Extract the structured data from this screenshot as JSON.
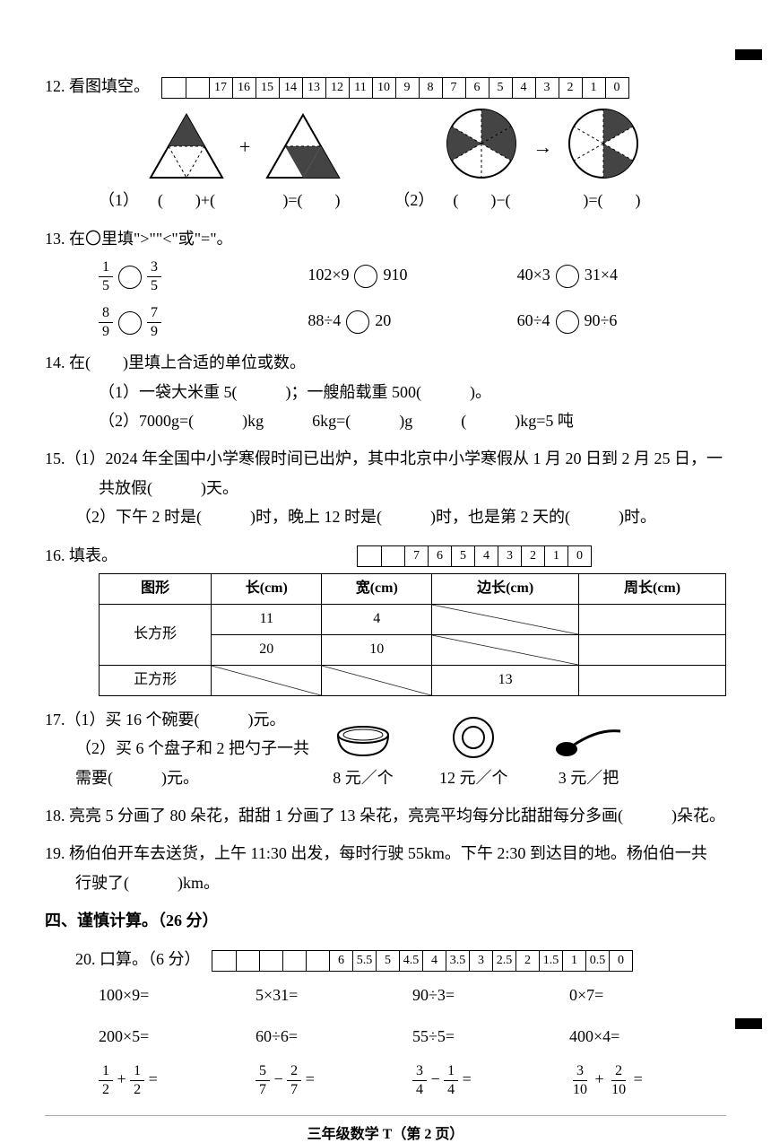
{
  "ruler_q12": [
    "",
    "",
    "17",
    "16",
    "15",
    "14",
    "13",
    "12",
    "11",
    "10",
    "9",
    "8",
    "7",
    "6",
    "5",
    "4",
    "3",
    "2",
    "1",
    "0"
  ],
  "q12": {
    "title": "12. 看图填空。",
    "sub1": "（1）",
    "sub2": "（2）",
    "eq1": "(　　)+(　　)=(　　)",
    "eq2": "(　　)−(　　)=(　　)"
  },
  "q13": {
    "title": "13. 在〇里填\">\"\"<\"或\"=\"。",
    "items": [
      {
        "left_n": "1",
        "left_d": "5",
        "right_n": "3",
        "right_d": "5",
        "type": "frac"
      },
      {
        "text_l": "102×9",
        "text_r": "910",
        "type": "expr"
      },
      {
        "text_l": "40×3",
        "text_r": "31×4",
        "type": "expr"
      },
      {
        "left_n": "8",
        "left_d": "9",
        "right_n": "7",
        "right_d": "9",
        "type": "frac"
      },
      {
        "text_l": "88÷4",
        "text_r": "20",
        "type": "expr"
      },
      {
        "text_l": "60÷4",
        "text_r": "90÷6",
        "type": "expr"
      }
    ]
  },
  "q14": {
    "title": "14. 在(　　)里填上合适的单位或数。",
    "line1": "（1）一袋大米重 5(　　　)；一艘船载重 500(　　　)。",
    "line2": "（2）7000g=(　　　)kg　　　6kg=(　　　)g　　　(　　　)kg=5 吨"
  },
  "q15": {
    "line1": "15.（1）2024 年全国中小学寒假时间已出炉，其中北京中小学寒假从 1 月 20 日到 2 月 25 日，一",
    "line1b": "共放假(　　　)天。",
    "line2": "（2）下午 2 时是(　　　)时，晚上 12 时是(　　　)时，也是第 2 天的(　　　)时。"
  },
  "q16": {
    "title": "16. 填表。",
    "ruler": [
      "",
      "",
      "7",
      "6",
      "5",
      "4",
      "3",
      "2",
      "1",
      "0"
    ],
    "headers": [
      "图形",
      "长(cm)",
      "宽(cm)",
      "边长(cm)",
      "周长(cm)"
    ],
    "rows": [
      {
        "shape": "长方形",
        "len": "11",
        "wid": "4",
        "side": "diag",
        "perim": ""
      },
      {
        "shape": "",
        "len": "20",
        "wid": "10",
        "side": "diag",
        "perim": ""
      },
      {
        "shape": "正方形",
        "len": "diag",
        "wid": "diag",
        "side": "13",
        "perim": ""
      }
    ]
  },
  "q17": {
    "line1": "17.（1）买 16 个碗要(　　　)元。",
    "line2": "（2）买 6 个盘子和 2 把勺子一共",
    "line3": "需要(　　　)元。",
    "items": [
      {
        "label": "8 元／个",
        "icon": "bowl"
      },
      {
        "label": "12 元／个",
        "icon": "plate"
      },
      {
        "label": "3 元／把",
        "icon": "spoon"
      }
    ]
  },
  "q18": "18. 亮亮 5 分画了 80 朵花，甜甜 1 分画了 13 朵花，亮亮平均每分比甜甜每分多画(　　　)朵花。",
  "q19": {
    "line1": "19. 杨伯伯开车去送货，上午 11:30 出发，每时行驶 55km。下午 2:30 到达目的地。杨伯伯一共",
    "line2": "行驶了(　　　)km。"
  },
  "section4": "四、谨慎计算。（26 分）",
  "q20": {
    "title": "20. 口算。（6 分）",
    "ruler": [
      "",
      "",
      "",
      "",
      "",
      "6",
      "5.5",
      "5",
      "4.5",
      "4",
      "3.5",
      "3",
      "2.5",
      "2",
      "1.5",
      "1",
      "0.5",
      "0"
    ],
    "calcs": [
      "100×9=",
      "5×31=",
      "90÷3=",
      "0×7=",
      "200×5=",
      "60÷6=",
      "55÷5=",
      "400×4="
    ],
    "fracs": [
      {
        "a_n": "1",
        "a_d": "2",
        "op": "+",
        "b_n": "1",
        "b_d": "2"
      },
      {
        "a_n": "5",
        "a_d": "7",
        "op": "−",
        "b_n": "2",
        "b_d": "7"
      },
      {
        "a_n": "3",
        "a_d": "4",
        "op": "−",
        "b_n": "1",
        "b_d": "4"
      },
      {
        "a_n": "3",
        "a_d": "10",
        "op": "+",
        "b_n": "2",
        "b_d": "10"
      }
    ]
  },
  "footer": "三年级数学 T（第 2 页）",
  "colors": {
    "text": "#000000",
    "bg": "#ffffff",
    "shade": "#444444"
  }
}
